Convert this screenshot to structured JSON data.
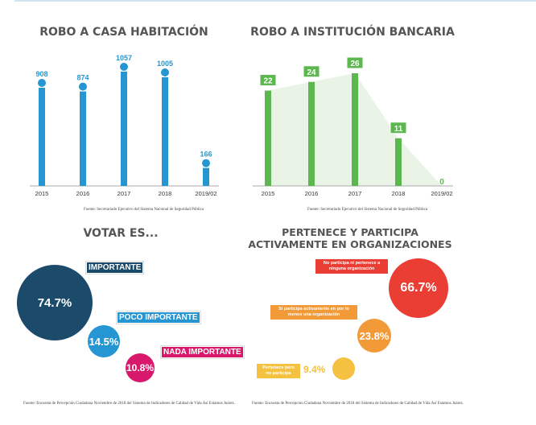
{
  "chart_data": [
    {
      "type": "bar",
      "title": "ROBO A CASA HABITACIÓN",
      "categories": [
        "2015",
        "2016",
        "2017",
        "2018",
        "2019/02"
      ],
      "values": [
        908,
        874,
        1057,
        1005,
        166
      ],
      "color": "#2596d1",
      "source": "Fuente: Secretariado Ejecutivo del Sistema Nacional de Seguridad Pública"
    },
    {
      "type": "bar",
      "title": "ROBO A INSTITUCIÓN BANCARIA",
      "categories": [
        "2015",
        "2016",
        "2017",
        "2018",
        "2019/02"
      ],
      "values": [
        22,
        24,
        26,
        11,
        0
      ],
      "color": "#5cb84e",
      "source": "Fuente: Secretariado Ejecutivo del Sistema Nacional de Seguridad Pública"
    },
    {
      "type": "pie",
      "title": "VOTAR ES...",
      "labels": [
        "IMPORTANTE",
        "POCO IMPORTANTE",
        "NADA IMPORTANTE"
      ],
      "values": [
        "74.7%",
        "14.5%",
        "10.8%"
      ],
      "colors": [
        "#1b4a6b",
        "#2596d1",
        "#d8196b"
      ],
      "source": "Fuente: Encuesta de Percepción Ciudadana Noviembre de 2018 del Sistema de Indicadores de Calidad de Vida Así Estamos Juárez."
    },
    {
      "type": "pie",
      "title": "PERTENECE Y PARTICIPA ACTIVAMENTE EN ORGANIZACIONES",
      "labels": [
        "No participa ni pertenece a ninguna organización",
        "Si participa activamente en por lo menos una organización",
        "Pertenece pero no participa"
      ],
      "values": [
        "66.7%",
        "23.8%",
        "9.4%"
      ],
      "colors": [
        "#ea3d33",
        "#f39a38",
        "#f4c240"
      ],
      "source": "Fuente: Encuesta de Percepción Ciudadana Noviembre de 2018 del Sistema de Indicadores de Calidad de Vida Así Estamos Juárez."
    }
  ]
}
